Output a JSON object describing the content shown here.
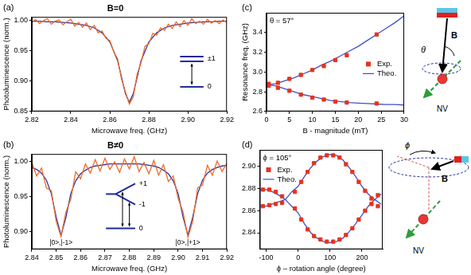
{
  "chart_data": [
    {
      "type": "line",
      "title": "B=0",
      "x_label": "Microwave freq. (GHz)",
      "y_label": "Photoluminescence (norm.)",
      "annotations": [
        "(a)",
        "±1",
        "0"
      ],
      "xlim": [
        2.82,
        2.92
      ],
      "xticks": [
        2.82,
        2.84,
        2.86,
        2.88,
        {
          "value": 2.9,
          "label": "2.90"
        },
        2.92
      ],
      "ylim": [
        0.85,
        1.005
      ],
      "yticks": [
        0.85,
        {
          "value": 0.9,
          "label": "0.90"
        },
        0.95,
        {
          "value": 1,
          "label": "1.00"
        }
      ],
      "grid": false,
      "series": [
        {
          "color": "#f06a28",
          "x": [
            2.82,
            2.822,
            2.824,
            2.826,
            2.828,
            2.83,
            2.832,
            2.834,
            2.836,
            2.838,
            2.84,
            2.842,
            2.844,
            2.846,
            2.848,
            2.85,
            2.852,
            2.854,
            2.856,
            2.858,
            2.86,
            2.862,
            2.864,
            2.866,
            2.868,
            2.87,
            2.872,
            2.874,
            2.876,
            2.878,
            2.88,
            2.882,
            2.884,
            2.886,
            2.888,
            2.89,
            2.892,
            2.894,
            2.896,
            2.898,
            2.9,
            2.902,
            2.904,
            2.906,
            2.908,
            2.91,
            2.912,
            2.914,
            2.916,
            2.918,
            2.92
          ],
          "values": [
            0.996,
            1.001,
            0.994,
            0.999,
            1.002,
            0.993,
            0.998,
            1.0,
            0.992,
            0.997,
            1.001,
            0.99,
            0.996,
            0.988,
            0.995,
            0.984,
            0.991,
            0.979,
            0.982,
            0.97,
            0.966,
            0.948,
            0.936,
            0.903,
            0.882,
            0.862,
            0.874,
            0.911,
            0.93,
            0.957,
            0.961,
            0.978,
            0.975,
            0.987,
            0.983,
            0.993,
            0.986,
            0.997,
            0.989,
            0.999,
            0.991,
            1.002,
            0.994,
            0.998,
            0.993,
            1.001,
            0.995,
            0.999,
            0.994,
            1.0,
            0.996
          ]
        },
        {
          "color": "#2a35a8",
          "x": [
            2.82,
            2.824,
            2.828,
            2.832,
            2.836,
            2.84,
            2.844,
            2.848,
            2.852,
            2.856,
            2.86,
            2.864,
            2.868,
            2.87,
            2.872,
            2.876,
            2.88,
            2.884,
            2.888,
            2.892,
            2.896,
            2.9,
            2.904,
            2.908,
            2.912,
            2.916,
            2.92
          ],
          "values": [
            0.998,
            0.998,
            0.997,
            0.997,
            0.996,
            0.995,
            0.993,
            0.991,
            0.987,
            0.979,
            0.964,
            0.933,
            0.879,
            0.865,
            0.879,
            0.933,
            0.964,
            0.979,
            0.987,
            0.991,
            0.993,
            0.995,
            0.996,
            0.997,
            0.997,
            0.998,
            0.998
          ]
        }
      ]
    },
    {
      "type": "line",
      "title": "B≠0",
      "x_label": "Microwave freq. (GHz)",
      "y_label": "Photoluminescence (norm.)",
      "annotations": [
        "(b)",
        "+1",
        "-1",
        "0",
        "|0>,|-1>",
        "|0>,|+1>"
      ],
      "xlim": [
        2.84,
        2.92
      ],
      "xticks": [
        2.84,
        2.85,
        2.86,
        2.87,
        2.88,
        2.89,
        {
          "value": 2.9,
          "label": "2.90"
        },
        2.91,
        2.92
      ],
      "ylim": [
        0.875,
        1.01
      ],
      "yticks": [
        {
          "value": 0.9,
          "label": "0.90"
        },
        0.95,
        {
          "value": 1,
          "label": "1.00"
        }
      ],
      "grid": false,
      "series": [
        {
          "color": "#f06a28",
          "x": [
            2.84,
            2.842,
            2.844,
            2.846,
            2.848,
            2.85,
            2.852,
            2.854,
            2.856,
            2.858,
            2.86,
            2.862,
            2.864,
            2.866,
            2.868,
            2.87,
            2.872,
            2.874,
            2.876,
            2.878,
            2.88,
            2.882,
            2.884,
            2.886,
            2.888,
            2.89,
            2.892,
            2.894,
            2.896,
            2.898,
            2.9,
            2.902,
            2.904,
            2.906,
            2.908,
            2.91,
            2.912,
            2.914,
            2.916,
            2.918,
            2.92
          ],
          "values": [
            0.998,
            0.979,
            0.99,
            0.962,
            0.958,
            0.915,
            0.893,
            0.928,
            0.946,
            0.985,
            0.975,
            0.996,
            0.983,
            1.002,
            0.986,
            1.004,
            0.988,
            0.999,
            0.984,
            1.003,
            0.989,
            1.006,
            0.985,
            0.998,
            0.982,
            1.001,
            0.98,
            0.995,
            0.971,
            0.979,
            0.947,
            0.928,
            0.892,
            0.915,
            0.962,
            0.966,
            0.994,
            0.98,
            1.0,
            0.985,
            0.997
          ]
        },
        {
          "color": "#2a35a8",
          "x": [
            2.84,
            2.842,
            2.844,
            2.846,
            2.848,
            2.85,
            2.852,
            2.854,
            2.856,
            2.858,
            2.86,
            2.862,
            2.864,
            2.866,
            2.868,
            2.87,
            2.872,
            2.874,
            2.876,
            2.878,
            2.88,
            2.882,
            2.884,
            2.886,
            2.888,
            2.89,
            2.892,
            2.894,
            2.896,
            2.898,
            2.9,
            2.902,
            2.904,
            2.906,
            2.908,
            2.91,
            2.912,
            2.914,
            2.916,
            2.918,
            2.92
          ],
          "values": [
            0.991,
            0.988,
            0.983,
            0.973,
            0.954,
            0.921,
            0.895,
            0.92,
            0.954,
            0.972,
            0.982,
            0.987,
            0.991,
            0.993,
            0.994,
            0.995,
            0.996,
            0.996,
            0.996,
            0.996,
            0.996,
            0.996,
            0.996,
            0.995,
            0.994,
            0.993,
            0.991,
            0.987,
            0.982,
            0.972,
            0.954,
            0.921,
            0.895,
            0.921,
            0.954,
            0.973,
            0.983,
            0.988,
            0.991,
            0.993,
            0.994
          ]
        }
      ]
    },
    {
      "type": "scatter",
      "x_label": "B - magnitude (mT)",
      "y_label": "Resonance freq. (GHz)",
      "annotations": [
        "(c)",
        "θ = 57°",
        "θ",
        "B",
        "NV"
      ],
      "xlim": [
        0,
        30
      ],
      "xticks": [
        0,
        5,
        10,
        15,
        20,
        25,
        30
      ],
      "ylim": [
        2.6,
        3.6
      ],
      "yticks": [
        2.6,
        2.8,
        {
          "value": 3,
          "label": "3.0"
        },
        3.2,
        3.4
      ],
      "grid": false,
      "legend": "right",
      "series": [
        {
          "name": "Exp.",
          "type": "scatter",
          "marker": "square",
          "color": "#e8321e",
          "x": [
            0.5,
            2.5,
            5,
            7.5,
            10,
            12.5,
            15,
            17.5,
            24,
            0.5,
            2.5,
            5,
            7.5,
            10,
            12.5,
            15,
            17.5,
            24
          ],
          "values": [
            2.88,
            2.89,
            2.93,
            2.97,
            3.02,
            3.06,
            3.12,
            3.17,
            3.38,
            2.86,
            2.84,
            2.81,
            2.77,
            2.74,
            2.72,
            2.7,
            2.69,
            2.68
          ]
        },
        {
          "name": "Theo.",
          "type": "line",
          "line_style": "solid",
          "color": "#3f51c8",
          "x": [
            0,
            2,
            4,
            6,
            8,
            10,
            12,
            14,
            16,
            18,
            20,
            22,
            24,
            26,
            28,
            30
          ],
          "values": [
            2.87,
            2.88,
            2.91,
            2.94,
            2.98,
            3.02,
            3.07,
            3.11,
            3.16,
            3.21,
            3.26,
            3.32,
            3.38,
            3.44,
            3.5,
            3.57
          ]
        },
        {
          "name": "Theo.",
          "type": "line",
          "line_style": "solid",
          "color": "#3f51c8",
          "x": [
            0,
            2,
            4,
            6,
            8,
            10,
            12,
            14,
            16,
            18,
            20,
            22,
            24,
            26,
            28,
            30
          ],
          "values": [
            2.87,
            2.86,
            2.83,
            2.8,
            2.77,
            2.75,
            2.73,
            2.71,
            2.7,
            2.69,
            2.685,
            2.68,
            2.675,
            2.67,
            2.67,
            2.665
          ]
        }
      ]
    },
    {
      "type": "scatter",
      "x_label": "ϕ – rotation angle (degree)",
      "annotations": [
        "(d)",
        "ϕ = 105°",
        "ϕ",
        "B",
        "NV"
      ],
      "xlim": [
        -120,
        265
      ],
      "xticks": [
        -100,
        0,
        100,
        200
      ],
      "ylim": [
        2.825,
        2.915
      ],
      "yticks": [
        2.84,
        2.86,
        2.88,
        {
          "value": 2.9,
          "label": "2.90"
        }
      ],
      "grid": false,
      "legend": "upper left",
      "series": [
        {
          "name": "Exp.",
          "type": "scatter",
          "marker": "square",
          "color": "#e8321e",
          "x": [
            -110,
            -90,
            -70,
            -50,
            -10,
            10,
            30,
            50,
            70,
            90,
            110,
            130,
            150,
            170,
            190,
            210,
            230,
            250,
            -110,
            -90,
            -70,
            -50,
            -10,
            10,
            30,
            50,
            70,
            90,
            110,
            130,
            150,
            170,
            190,
            210,
            230,
            250
          ],
          "values": [
            2.879,
            2.879,
            2.877,
            2.873,
            2.877,
            2.886,
            2.895,
            2.903,
            2.908,
            2.91,
            2.91,
            2.908,
            2.902,
            2.895,
            2.886,
            2.878,
            2.871,
            2.874,
            2.864,
            2.865,
            2.866,
            2.867,
            2.862,
            2.852,
            2.843,
            2.837,
            2.834,
            2.832,
            2.832,
            2.834,
            2.838,
            2.844,
            2.852,
            2.86,
            2.866,
            2.864
          ]
        },
        {
          "name": "Theo.",
          "type": "line",
          "line_style": "solid",
          "color": "#3f51c8",
          "x": [
            -120,
            -100,
            -80,
            -60,
            -40,
            -20,
            0,
            20,
            40,
            60,
            80,
            100,
            120,
            140,
            160,
            180,
            200,
            220,
            240,
            260
          ],
          "values": [
            2.879,
            2.879,
            2.877,
            2.874,
            2.87,
            2.877,
            2.882,
            2.891,
            2.899,
            2.905,
            2.909,
            2.911,
            2.91,
            2.906,
            2.899,
            2.891,
            2.882,
            2.875,
            2.87,
            2.875
          ]
        },
        {
          "name": "Theo.",
          "type": "line",
          "line_style": "solid",
          "color": "#3f51c8",
          "x": [
            -120,
            -100,
            -80,
            -60,
            -40,
            -20,
            0,
            20,
            40,
            60,
            80,
            100,
            120,
            140,
            160,
            180,
            200,
            220,
            240,
            260
          ],
          "values": [
            2.864,
            2.864,
            2.866,
            2.868,
            2.87,
            2.864,
            2.858,
            2.848,
            2.84,
            2.835,
            2.832,
            2.831,
            2.832,
            2.835,
            2.841,
            2.848,
            2.856,
            2.864,
            2.87,
            2.866
          ]
        }
      ]
    }
  ]
}
